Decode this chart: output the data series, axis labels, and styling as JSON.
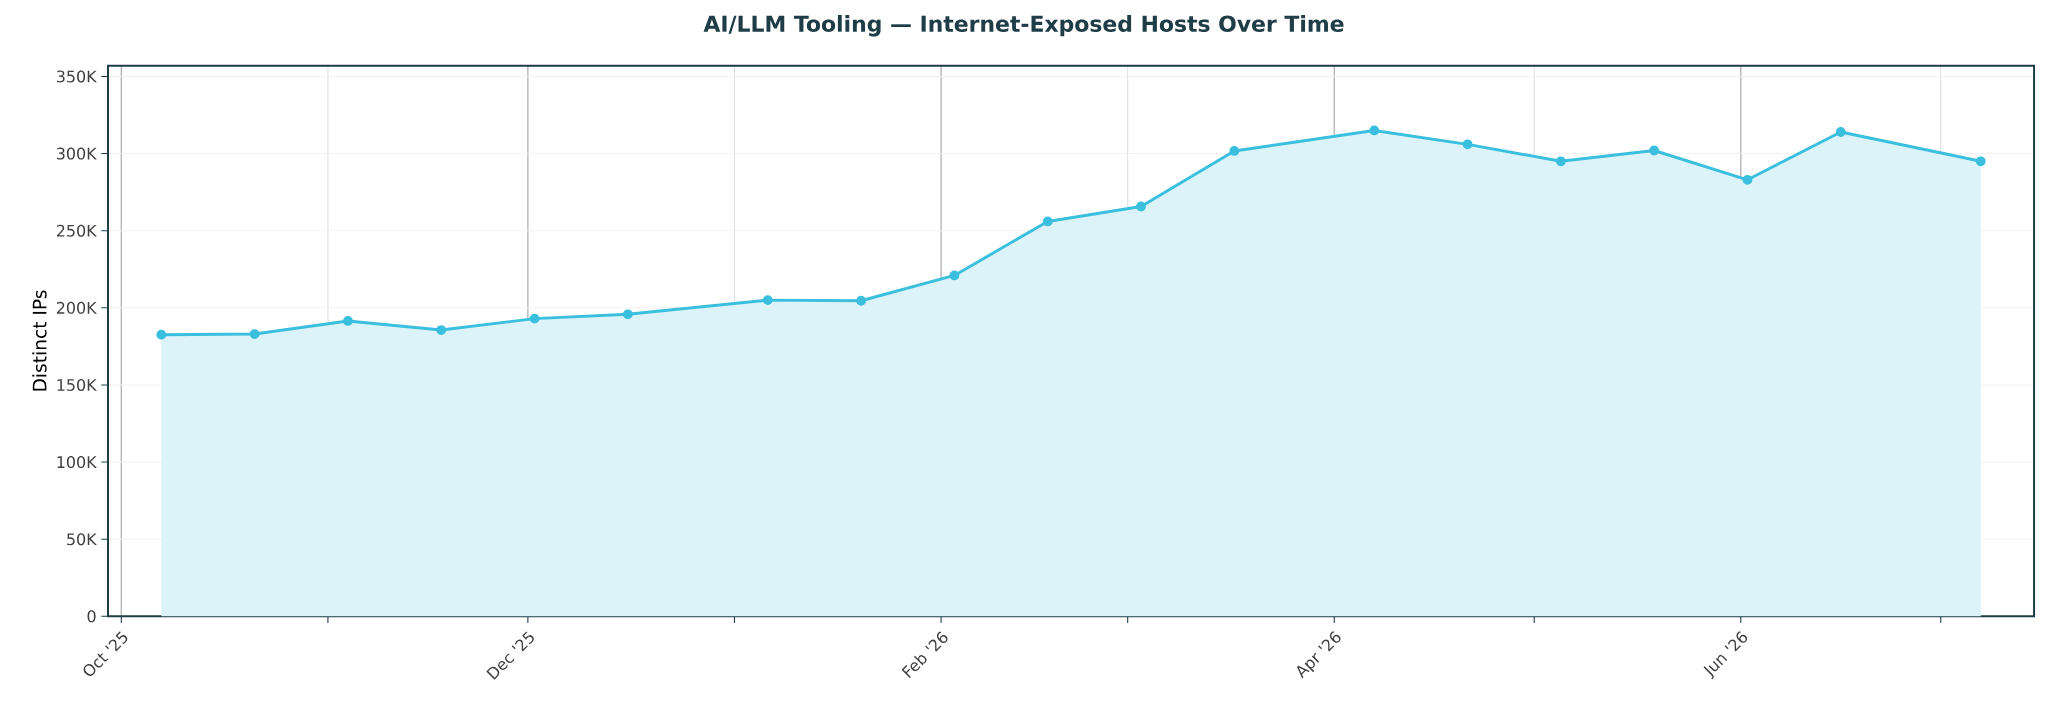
{
  "chart_data": {
    "type": "area",
    "title": "AI/LLM Tooling — Internet-Exposed Hosts Over Time",
    "ylabel": "Distinct IPs",
    "x": [
      "2025-10-07",
      "2025-10-21",
      "2025-11-04",
      "2025-11-18",
      "2025-12-02",
      "2025-12-16",
      "2026-01-06",
      "2026-01-20",
      "2026-02-03",
      "2026-02-17",
      "2026-03-03",
      "2026-03-17",
      "2026-04-07",
      "2026-04-21",
      "2026-05-05",
      "2026-05-19",
      "2026-06-02",
      "2026-06-16",
      "2026-07-07"
    ],
    "series": [
      {
        "color": "#3bbfde",
        "values": [
          182600,
          183000,
          191500,
          185600,
          193000,
          195800,
          205000,
          204600,
          221000,
          256000,
          265700,
          301700,
          315000,
          306000,
          295000,
          302000,
          283000,
          314000,
          295000
        ]
      }
    ],
    "xlim": [
      "2025-09-29",
      "2026-07-15"
    ],
    "xticks": [
      {
        "value": "2025-10-01",
        "label": "Oct '25"
      },
      {
        "value": "2025-11-01",
        "label": null
      },
      {
        "value": "2025-12-01",
        "label": "Dec '25"
      },
      {
        "value": "2026-01-01",
        "label": null
      },
      {
        "value": "2026-02-01",
        "label": "Feb '26"
      },
      {
        "value": "2026-03-01",
        "label": null
      },
      {
        "value": "2026-04-01",
        "label": "Apr '26"
      },
      {
        "value": "2026-05-01",
        "label": null
      },
      {
        "value": "2026-06-01",
        "label": "Jun '26"
      },
      {
        "value": "2026-07-01",
        "label": null
      }
    ],
    "ylim": [
      0,
      357000
    ],
    "yticks": [
      0,
      {
        "value": 50000,
        "label": "50K"
      },
      {
        "value": 100000,
        "label": "100K"
      },
      {
        "value": 150000,
        "label": "150K"
      },
      {
        "value": 200000,
        "label": "200K"
      },
      {
        "value": 250000,
        "label": "250K"
      },
      {
        "value": 300000,
        "label": "300K"
      },
      {
        "value": 350000,
        "label": "350K"
      }
    ],
    "grid": true,
    "marker": "circle",
    "line_style": "solid"
  }
}
